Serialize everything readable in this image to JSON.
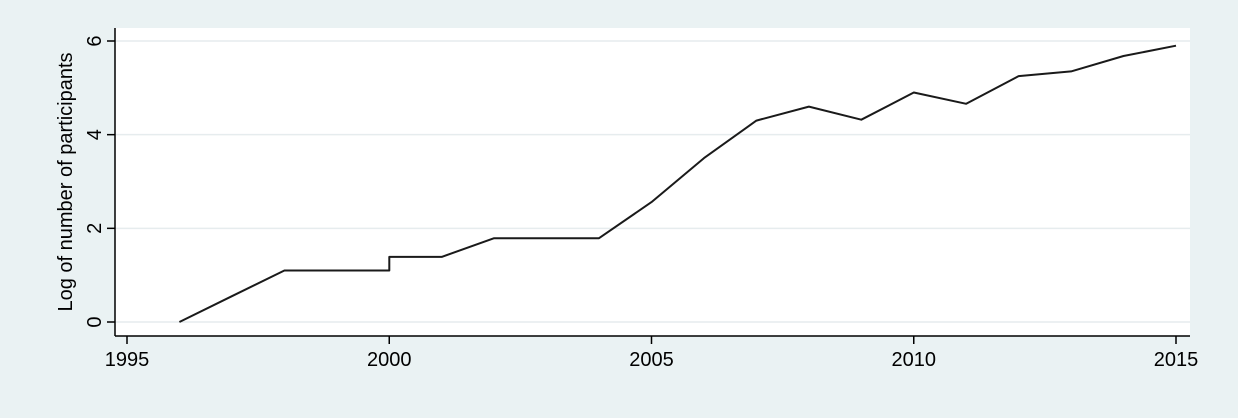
{
  "chart_data": {
    "type": "line",
    "title": "",
    "xlabel": "",
    "ylabel": "Log of number of participants",
    "xlim": [
      1995,
      2015
    ],
    "ylim": [
      0,
      6
    ],
    "x_ticks": [
      1995,
      2000,
      2005,
      2010,
      2015
    ],
    "y_ticks": [
      0,
      2,
      4,
      6
    ],
    "grid": "horizontal",
    "legend": "none",
    "colors": {
      "background": "#eaf2f3",
      "plot_area": "#ffffff",
      "line": "#1a1a1a",
      "grid": "#e6ecee"
    },
    "series": [
      {
        "points": [
          [
            1996,
            0.0
          ],
          [
            1997,
            0.55
          ],
          [
            1998,
            1.1
          ],
          [
            1999,
            1.1
          ],
          [
            2000,
            1.1
          ],
          [
            2000,
            1.39
          ],
          [
            2001,
            1.39
          ],
          [
            2002,
            1.79
          ],
          [
            2003,
            1.79
          ],
          [
            2004,
            1.79
          ],
          [
            2005,
            2.56
          ],
          [
            2006,
            3.5
          ],
          [
            2007,
            4.3
          ],
          [
            2008,
            4.6
          ],
          [
            2009,
            4.32
          ],
          [
            2010,
            4.9
          ],
          [
            2011,
            4.66
          ],
          [
            2012,
            5.25
          ],
          [
            2013,
            5.35
          ],
          [
            2014,
            5.68
          ],
          [
            2015,
            5.9
          ]
        ]
      }
    ]
  }
}
